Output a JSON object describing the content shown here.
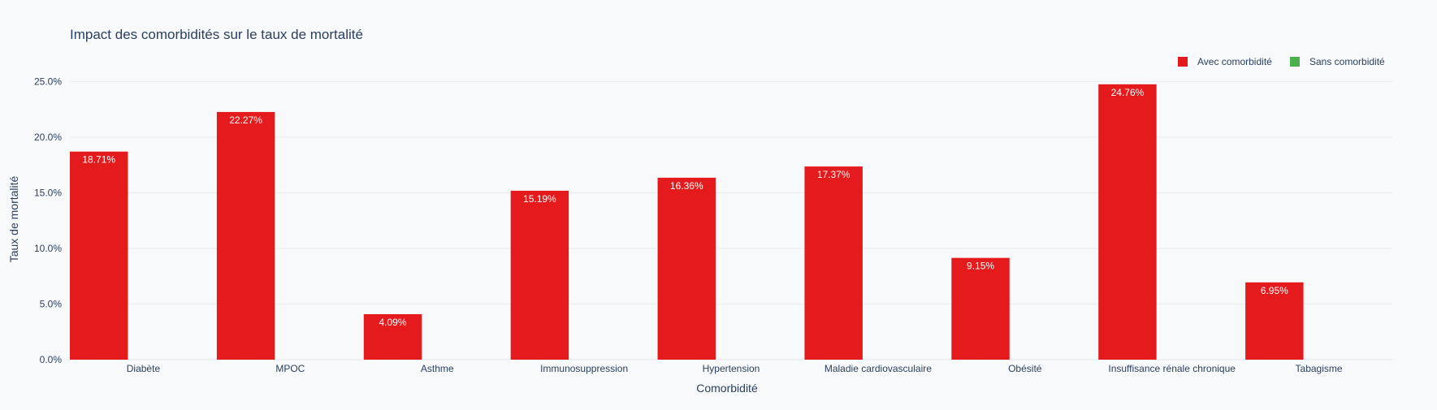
{
  "chart_data": {
    "type": "bar",
    "title": "Impact des comorbidités sur le taux de mortalité",
    "xlabel": "Comorbidité",
    "ylabel": "Taux de mortalité",
    "categories": [
      "Diabète",
      "MPOC",
      "Asthme",
      "Immunosuppression",
      "Hypertension",
      "Maladie cardiovasculaire",
      "Obésité",
      "Insuffisance rénale chronique",
      "Tabagisme"
    ],
    "series": [
      {
        "name": "Avec comorbidité",
        "color": "#e41a1c",
        "values": [
          18.71,
          22.27,
          4.09,
          15.19,
          16.36,
          17.37,
          9.15,
          24.76,
          6.95
        ],
        "labels": [
          "18.71%",
          "22.27%",
          "4.09%",
          "15.19%",
          "16.36%",
          "17.37%",
          "9.15%",
          "24.76%",
          "6.95%"
        ]
      },
      {
        "name": "Sans comorbidité",
        "color": "#4daf4a",
        "values": [
          0,
          0,
          0,
          0,
          0,
          0,
          0,
          0,
          0
        ],
        "labels": [
          "",
          "",
          "",
          "",
          "",
          "",
          "",
          "",
          ""
        ]
      }
    ],
    "ylim": [
      0,
      26.5
    ],
    "yticks": [
      0,
      5,
      10,
      15,
      20,
      25
    ],
    "ytick_labels": [
      "0.0%",
      "5.0%",
      "10.0%",
      "15.0%",
      "20.0%",
      "25.0%"
    ],
    "grid": true,
    "legend_position": "top-right"
  }
}
